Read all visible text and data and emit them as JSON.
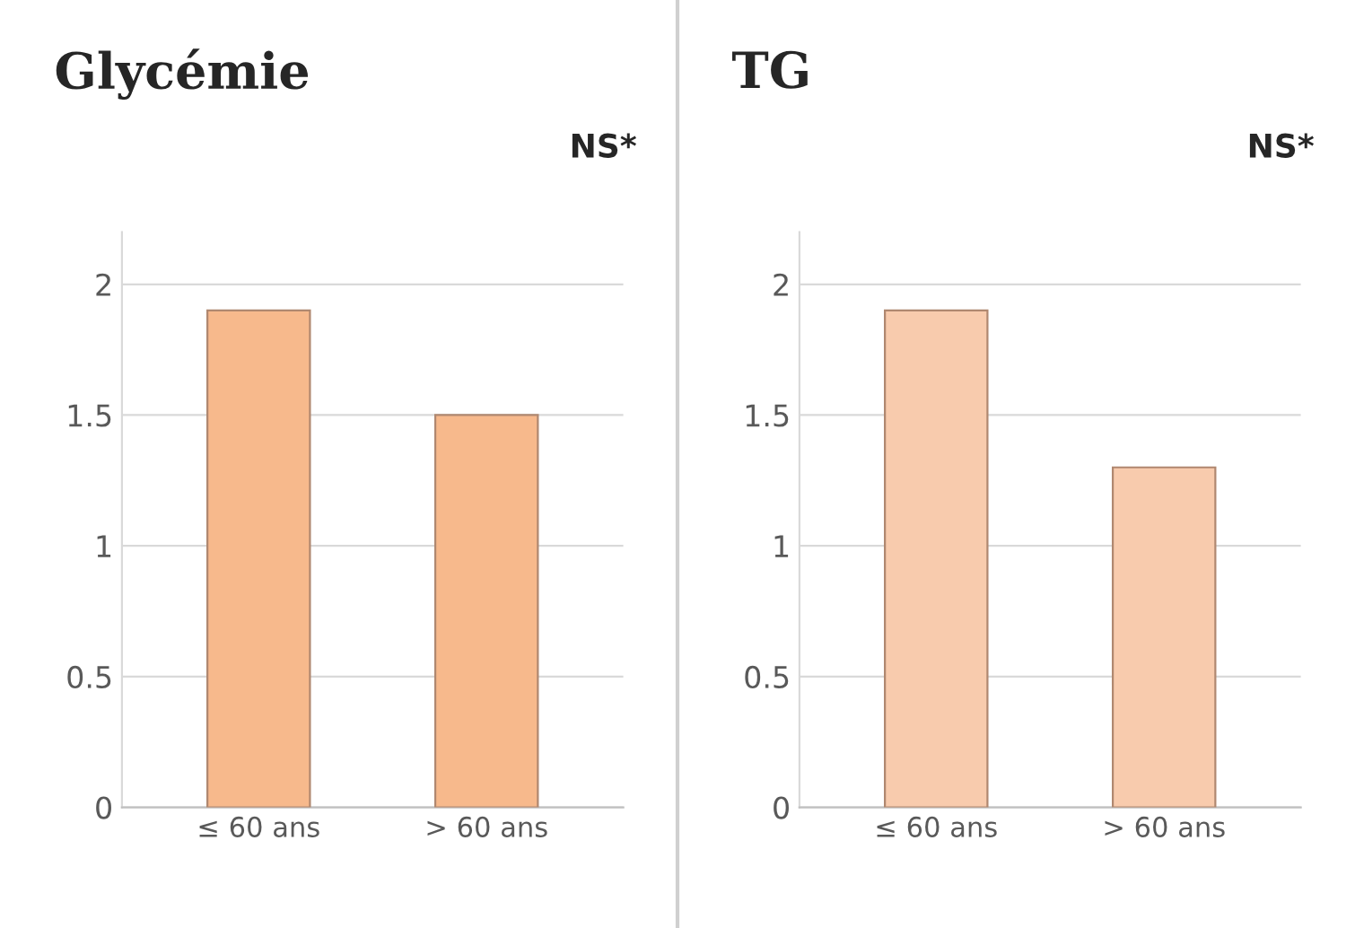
{
  "chart_data": [
    {
      "type": "bar",
      "title": "Glycémie",
      "annotations": [
        "NS*"
      ],
      "categories": [
        "≤ 60 ans",
        "> 60 ans"
      ],
      "values": [
        1.9,
        1.5
      ],
      "color": "#f7b98c",
      "ylim": [
        0,
        2.2
      ],
      "yticks": [
        0,
        0.5,
        1,
        1.5,
        2
      ],
      "grid": "y"
    },
    {
      "type": "bar",
      "title": "TG",
      "annotations": [
        "NS*"
      ],
      "categories": [
        "≤ 60 ans",
        "> 60 ans"
      ],
      "values": [
        1.9,
        1.3
      ],
      "color": "#f8cbad",
      "ylim": [
        0,
        2.2
      ],
      "yticks": [
        0,
        0.5,
        1,
        1.5,
        2
      ],
      "grid": "y"
    }
  ]
}
